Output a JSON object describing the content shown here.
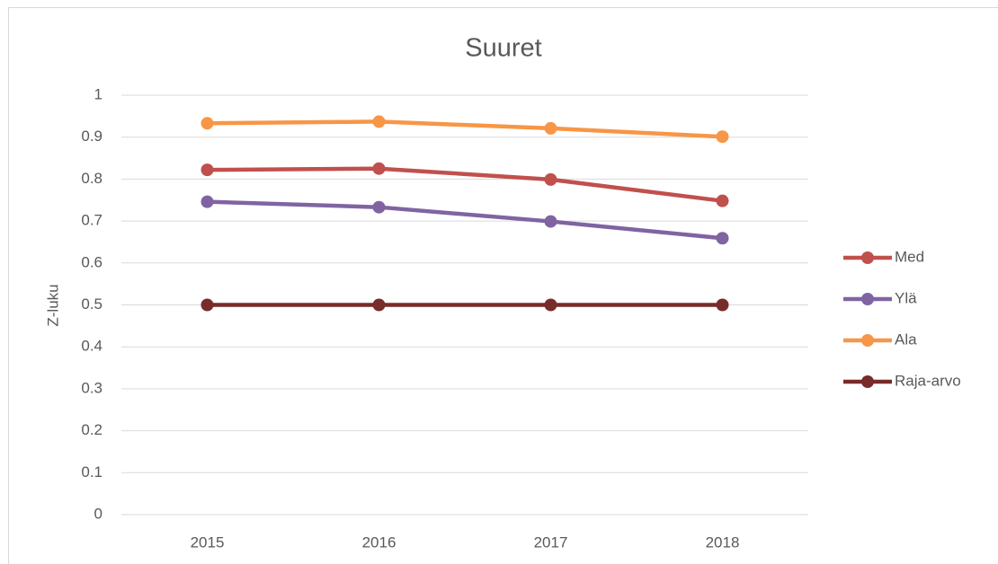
{
  "chart_data": {
    "type": "line",
    "title": "Suuret",
    "y_label": "Z-luku",
    "categories": [
      "2015",
      "2016",
      "2017",
      "2018"
    ],
    "series": [
      {
        "name": "Med",
        "color": "#c0504d",
        "values": [
          0.822,
          0.825,
          0.799,
          0.748
        ]
      },
      {
        "name": "Ylä",
        "color": "#8064a2",
        "values": [
          0.746,
          0.733,
          0.699,
          0.659
        ]
      },
      {
        "name": "Ala",
        "color": "#f79646",
        "values": [
          0.933,
          0.937,
          0.921,
          0.901
        ]
      },
      {
        "name": "Raja-arvo",
        "color": "#772c2a",
        "values": [
          0.5,
          0.5,
          0.5,
          0.5
        ]
      }
    ],
    "ylim": [
      0,
      1
    ],
    "yticks": [
      0,
      0.1,
      0.2,
      0.3,
      0.4,
      0.5,
      0.6,
      0.7,
      0.8,
      0.9,
      1
    ],
    "grid": true,
    "legend": "right"
  }
}
